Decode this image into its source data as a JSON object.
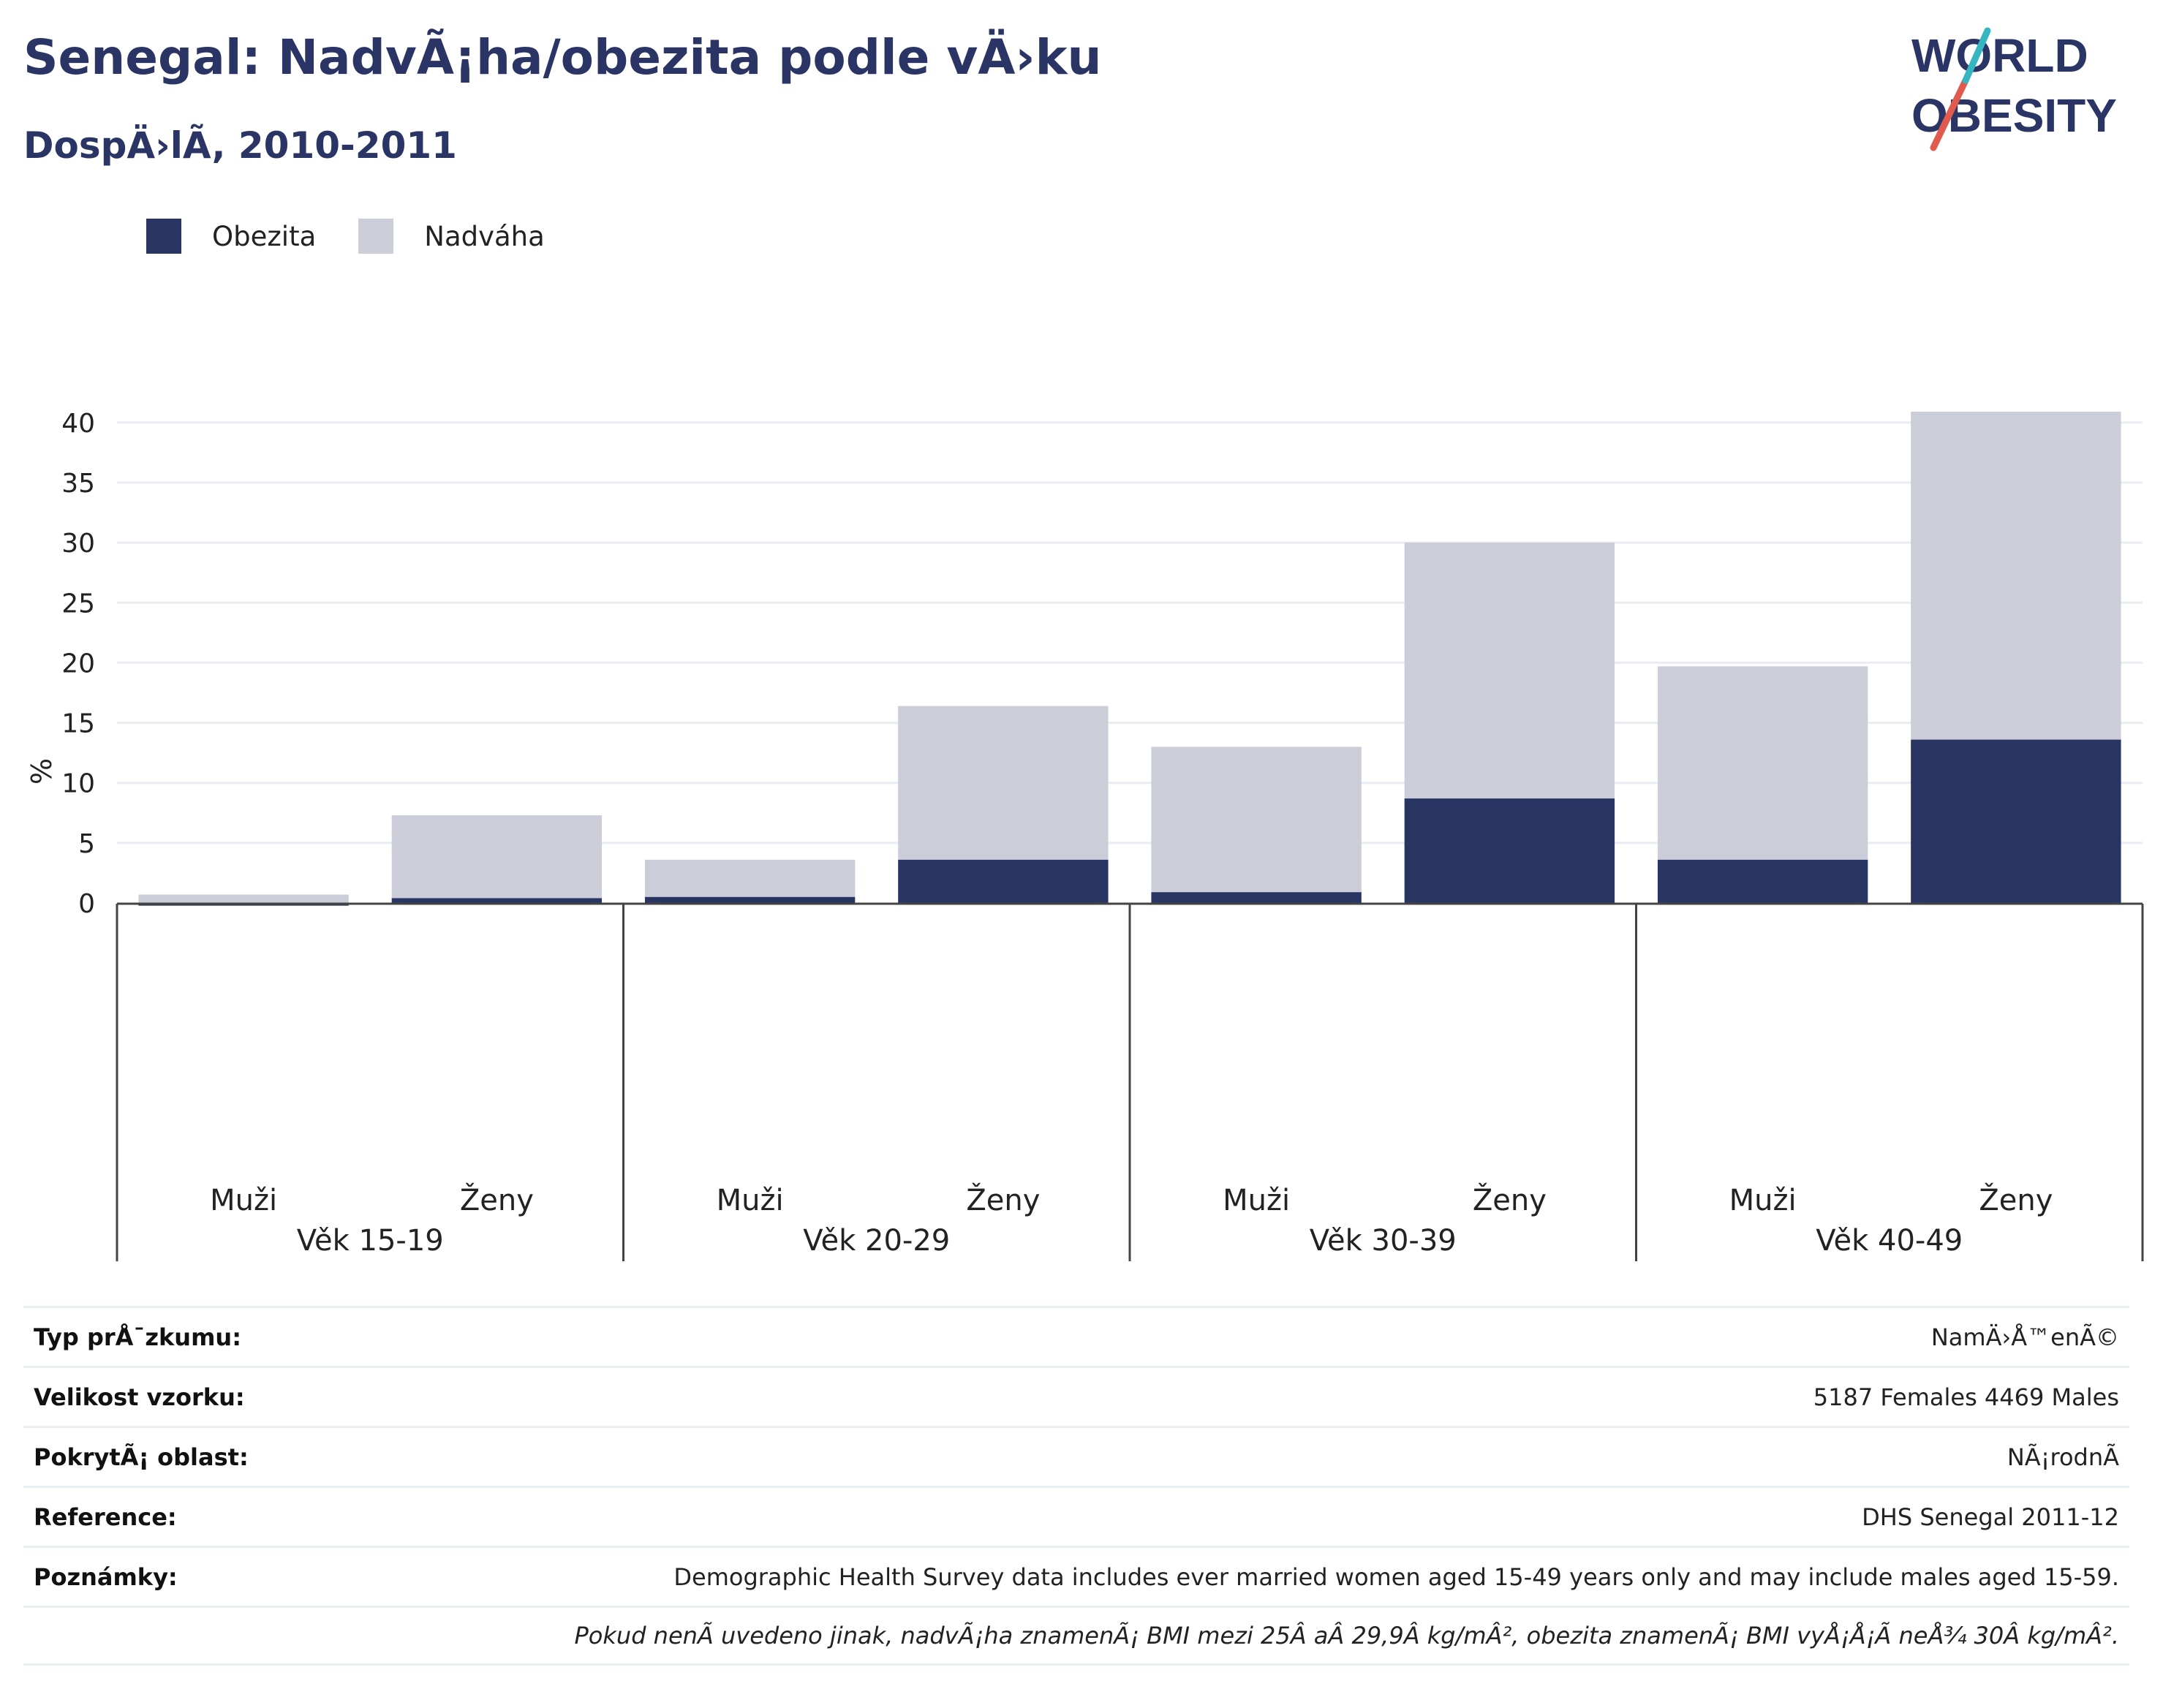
{
  "header": {
    "title": "Senegal: NadvÃ¡ha/obezita podle vÄ›ku",
    "subtitle": "DospÄ›lÃ, 2010-2011"
  },
  "logo": {
    "line1": "WORLD",
    "line2": "OBESITY",
    "text_color": "#2b3565",
    "accent_red": "#e05a4e",
    "accent_teal": "#35b6c0"
  },
  "legend": [
    {
      "label": "Obezita",
      "color": "#283462"
    },
    {
      "label": "Nadváha",
      "color": "#cbcdd9"
    }
  ],
  "chart_data": {
    "type": "bar",
    "stacked": true,
    "ylabel": "%",
    "ylim": [
      0,
      42
    ],
    "yticks": [
      0,
      5,
      10,
      15,
      20,
      25,
      30,
      35,
      40
    ],
    "grid": true,
    "legend_position": "top-left",
    "groups": [
      "Věk 15-19",
      "Věk 20-29",
      "Věk 30-39",
      "Věk 40-49"
    ],
    "categories": [
      "Muži",
      "Ženy",
      "Muži",
      "Ženy",
      "Muži",
      "Ženy",
      "Muži",
      "Ženy"
    ],
    "series": [
      {
        "name": "Obezita",
        "color": "#283462",
        "values": [
          -0.1,
          0.4,
          0.5,
          3.6,
          0.9,
          8.7,
          3.6,
          13.6
        ]
      },
      {
        "name": "Nadváha",
        "color": "#cbcdd9",
        "values": [
          0.7,
          6.9,
          3.1,
          12.8,
          12.1,
          21.3,
          16.1,
          27.3
        ]
      }
    ]
  },
  "info": {
    "rows": [
      {
        "key": "Typ prÅ¯zkumu:",
        "value": "NamÄ›Å™enÃ©"
      },
      {
        "key": "Velikost vzorku:",
        "value": "5187 Females 4469 Males"
      },
      {
        "key": "PokrytÃ¡ oblast:",
        "value": "NÃ¡rodnÃ"
      },
      {
        "key": "Reference:",
        "value": "DHS Senegal 2011-12"
      },
      {
        "key": "Poznámky:",
        "value": "Demographic Health Survey data includes ever married women aged 15-49 years only and may include males aged 15-59."
      }
    ],
    "note": "Pokud nenÃ uvedeno jinak, nadvÃ¡ha znamenÃ¡ BMI mezi 25Â aÂ 29,9Â kg/mÂ², obezita znamenÃ¡ BMI vyÅ¡Å¡Ã neÅ¾ 30Â kg/mÂ²."
  }
}
